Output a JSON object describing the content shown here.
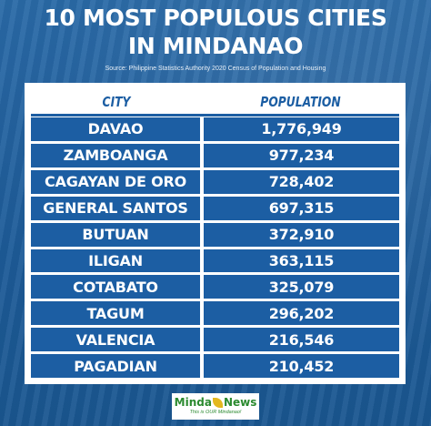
{
  "title": {
    "line1": "10 MOST POPULOUS CITIES",
    "line2": "IN MINDANAO"
  },
  "source": "Source: Philippine Statistics Authority 2020 Census of Population and Housing",
  "table": {
    "headers": {
      "city": "CITY",
      "population": "POPULATION"
    },
    "rows": [
      {
        "city": "DAVAO",
        "population": "1,776,949"
      },
      {
        "city": "ZAMBOANGA",
        "population": "977,234"
      },
      {
        "city": "CAGAYAN DE ORO",
        "population": "728,402"
      },
      {
        "city": "GENERAL SANTOS",
        "population": "697,315"
      },
      {
        "city": "BUTUAN",
        "population": "372,910"
      },
      {
        "city": "ILIGAN",
        "population": "363,115"
      },
      {
        "city": "COTABATO",
        "population": "325,079"
      },
      {
        "city": "TAGUM",
        "population": "296,202"
      },
      {
        "city": "VALENCIA",
        "population": "216,546"
      },
      {
        "city": "PAGADIAN",
        "population": "210,452"
      }
    ]
  },
  "logo": {
    "part1": "Minda",
    "part2": "News",
    "tagline": "This is OUR Mindanao!",
    "leaf_icon": "leaf-icon"
  },
  "colors": {
    "background": "#1f5f9c",
    "table_cell": "#1c5ea3",
    "header_text": "#1c5ea3",
    "logo_green": "#2b8a2f",
    "logo_yellow": "#e3b81f"
  }
}
